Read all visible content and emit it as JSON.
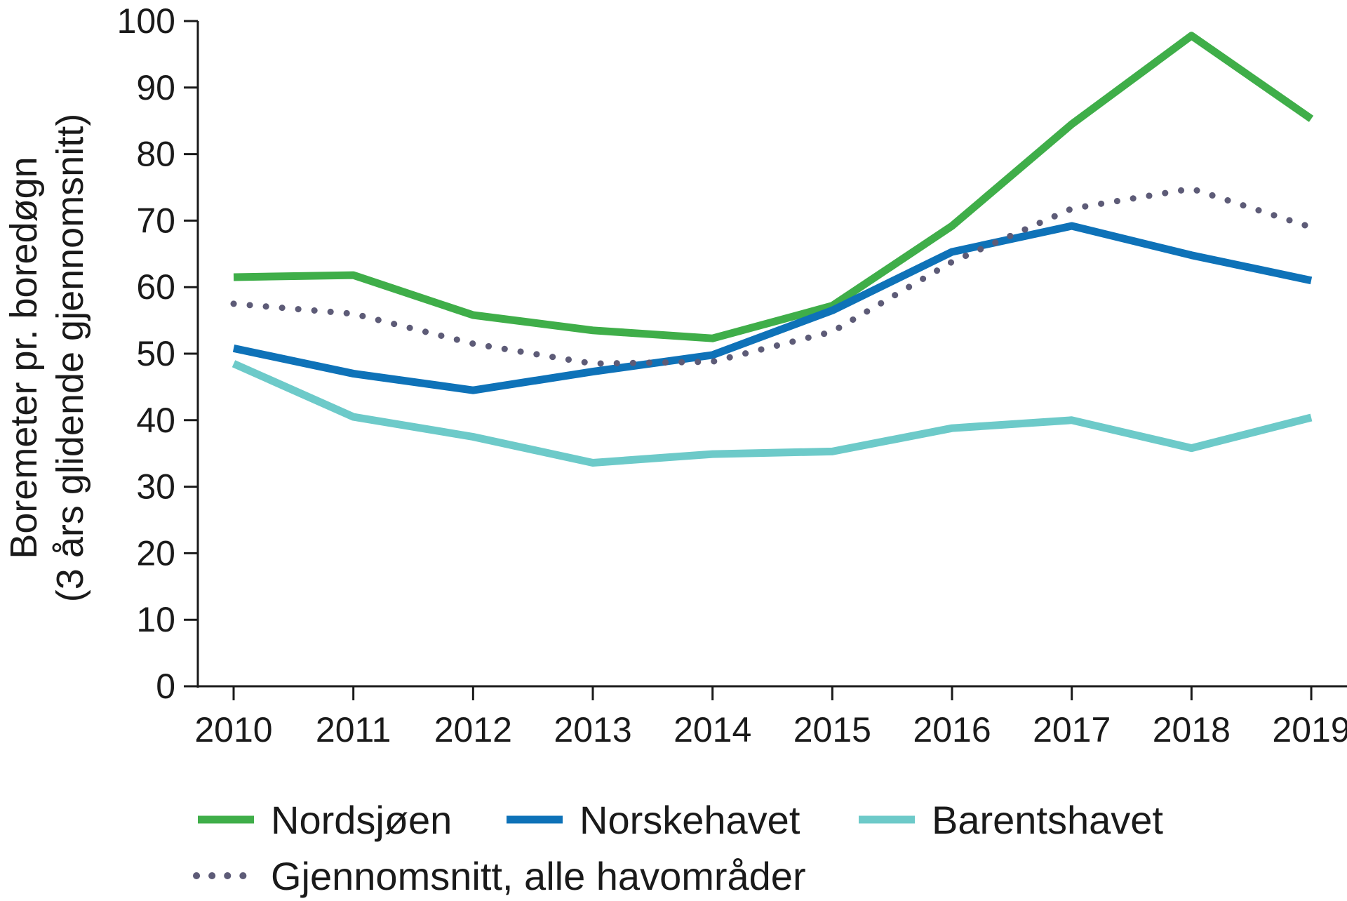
{
  "chart_data": {
    "type": "line",
    "title": "",
    "xlabel": "",
    "ylabel_lines": [
      "Boremeter pr. boredøgn",
      "(3 års glidende gjennomsnitt)"
    ],
    "categories": [
      "2010",
      "2011",
      "2012",
      "2013",
      "2014",
      "2015",
      "2016",
      "2017",
      "2018",
      "2019"
    ],
    "y_ticks": [
      "0",
      "10",
      "20",
      "30",
      "40",
      "50",
      "60",
      "70",
      "80",
      "90",
      "100"
    ],
    "ylim": [
      0,
      100
    ],
    "grid": false,
    "legend_placement": "bottom",
    "series": [
      {
        "name": "Nordsjøen",
        "color": "#3fae49",
        "style": "solid",
        "values": [
          61.5,
          61.8,
          55.8,
          53.5,
          52.3,
          57.2,
          69.2,
          84.5,
          97.8,
          85.3
        ]
      },
      {
        "name": "Norskehavet",
        "color": "#0e72b8",
        "style": "solid",
        "values": [
          50.8,
          47.0,
          44.5,
          47.3,
          49.8,
          56.5,
          65.3,
          69.2,
          64.8,
          61.0
        ]
      },
      {
        "name": "Barentshavet",
        "color": "#6dcac9",
        "style": "solid",
        "values": [
          48.5,
          40.5,
          37.5,
          33.6,
          34.9,
          35.3,
          38.8,
          40.0,
          35.8,
          40.4
        ]
      },
      {
        "name": "Gjennomsnitt, alle havområder",
        "color": "#5d5b77",
        "style": "dotted",
        "values": [
          57.5,
          56.0,
          51.5,
          48.5,
          48.8,
          53.3,
          63.8,
          71.8,
          74.8,
          69.0
        ]
      }
    ]
  }
}
